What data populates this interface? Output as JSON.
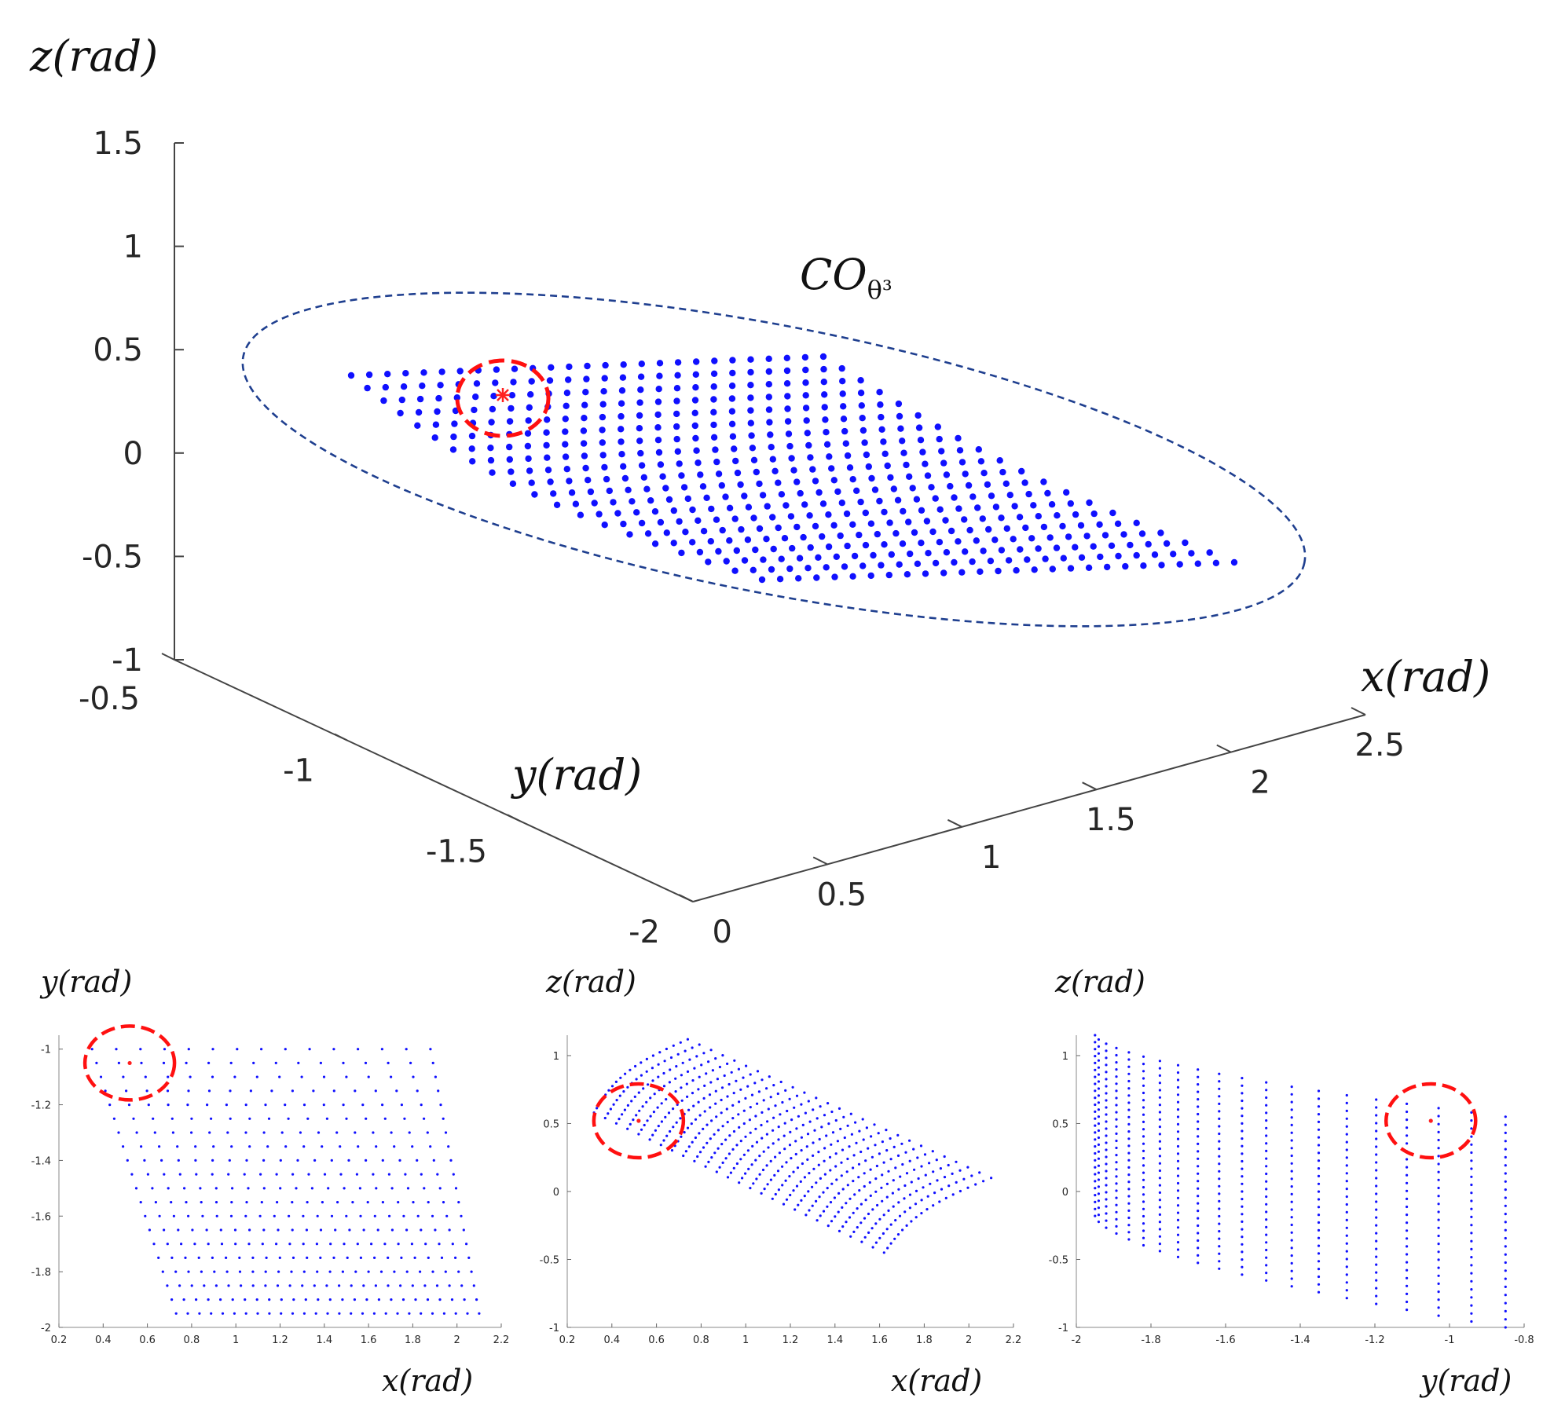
{
  "chart_data": [
    {
      "type": "scatter3d",
      "xlabel": "x(rad)",
      "ylabel": "y(rad)",
      "zlabel": "z(rad)",
      "xlim": [
        0,
        2.5
      ],
      "ylim": [
        -2,
        -0.5
      ],
      "zlim": [
        -1,
        1.5
      ],
      "xticks": [
        "0",
        "0.5",
        "1",
        "1.5",
        "2",
        "2.5"
      ],
      "yticks": [
        "-0.5",
        "-1",
        "-1.5",
        "-2"
      ],
      "zticks": [
        "1.5",
        "1",
        "0.5",
        "0",
        "-0.5",
        "-1"
      ],
      "annotation": "CO",
      "annotation_sub": "θ³",
      "point_color": "#1010ff",
      "highlight_color": "#ff2020",
      "ellipse_color": "#1f3f8f",
      "grid": false,
      "grid_rows": 20,
      "grid_cols": 27,
      "x_range": [
        0.35,
        2.1
      ],
      "y_range": [
        -1.95,
        -1.0
      ],
      "z_range": [
        -0.95,
        1.1
      ],
      "highlight_point": {
        "x": 0.52,
        "y": -1.05,
        "z": 0.52
      }
    },
    {
      "type": "scatter",
      "xlabel": "x(rad)",
      "ylabel": "y(rad)",
      "xlim": [
        0.2,
        2.2
      ],
      "ylim": [
        -2,
        -0.95
      ],
      "xticks": [
        "0.2",
        "0.4",
        "0.6",
        "0.8",
        "1",
        "1.2",
        "1.4",
        "1.6",
        "1.8",
        "2",
        "2.2"
      ],
      "yticks": [
        "-1",
        "-1.2",
        "-1.4",
        "-1.6",
        "-1.8",
        "-2"
      ],
      "highlight_point": {
        "x": 0.52,
        "y": -1.05
      }
    },
    {
      "type": "scatter",
      "xlabel": "x(rad)",
      "ylabel": "z(rad)",
      "xlim": [
        0.2,
        2.2
      ],
      "ylim": [
        -1,
        1.15
      ],
      "xticks": [
        "0.2",
        "0.4",
        "0.6",
        "0.8",
        "1",
        "1.2",
        "1.4",
        "1.6",
        "1.8",
        "2",
        "2.2"
      ],
      "yticks": [
        "1",
        "0.5",
        "0",
        "-0.5",
        "-1"
      ],
      "highlight_point": {
        "x": 0.52,
        "z": 0.52
      }
    },
    {
      "type": "scatter",
      "xlabel": "y(rad)",
      "ylabel": "z(rad)",
      "xlim": [
        -2,
        -0.8
      ],
      "ylim": [
        -1,
        1.15
      ],
      "xticks": [
        "-2",
        "-1.8",
        "-1.6",
        "-1.4",
        "-1.2",
        "-1",
        "-0.8"
      ],
      "yticks": [
        "1",
        "0.5",
        "0",
        "-0.5",
        "-1"
      ],
      "highlight_point": {
        "y": -1.05,
        "z": 0.52
      }
    }
  ]
}
